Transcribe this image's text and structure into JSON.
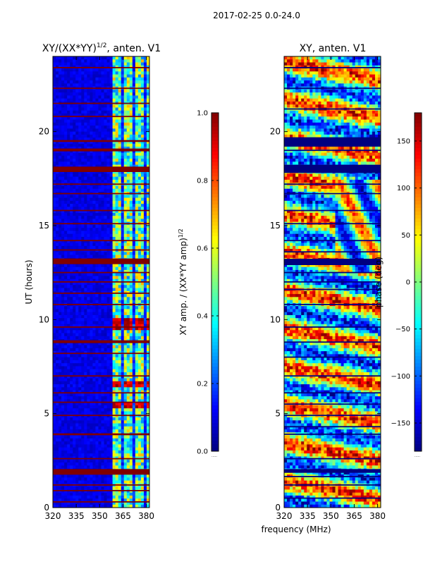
{
  "suptitle": "2017-02-25 0.0-24.0",
  "shared_xlabel": "frequency (MHz)",
  "chart_data": [
    {
      "type": "heatmap",
      "title": "XY/(XX*YY)",
      "title_sup": "1/2",
      "title_suffix": ", anten. V1",
      "xlabel": "",
      "ylabel": "UT (hours)",
      "xlim": [
        320,
        382
      ],
      "ylim": [
        0,
        24
      ],
      "xticks": [
        "320",
        "335",
        "350",
        "365",
        "380"
      ],
      "xtick_values": [
        320,
        335,
        350,
        365,
        380
      ],
      "yticks": [
        "0",
        "5",
        "10",
        "15",
        "20"
      ],
      "ytick_values": [
        0,
        5,
        10,
        15,
        20
      ],
      "colorbar": {
        "label": "XY amp. / (XX*YY amp)",
        "label_sup": "1/2",
        "ticks": [
          "0.0",
          "0.2",
          "0.4",
          "0.6",
          "0.8",
          "1.0"
        ],
        "tick_values": [
          0.0,
          0.2,
          0.4,
          0.6,
          0.8,
          1.0
        ],
        "range": [
          0.0,
          1.0
        ],
        "colormap": "jet"
      },
      "notable_features": {
        "flagged_rows_ut_hours": [
          0.3,
          0.9,
          1.2,
          1.9,
          2.6,
          3.9,
          4.9,
          5.6,
          6.1,
          7.0,
          8.2,
          8.8,
          9.6,
          10.8,
          11.4,
          12.0,
          12.5,
          13.0,
          13.2,
          13.7,
          14.2,
          15.1,
          15.8,
          16.7,
          17.2,
          17.9,
          18.1,
          19.0,
          19.5,
          20.8,
          21.5,
          22.3,
          23.4
        ],
        "thick_flagged_bands_ut_hours": [
          [
            1.75,
            2.05
          ],
          [
            3.85,
            3.95
          ],
          [
            8.75,
            8.9
          ],
          [
            12.95,
            13.25
          ],
          [
            17.85,
            18.1
          ],
          [
            18.95,
            19.1
          ],
          [
            19.45,
            19.55
          ]
        ],
        "high_coherence_freq_range_mhz": [
          359,
          381
        ],
        "high_coherence_bursts_ut_hours": [
          [
            6.4,
            6.8
          ],
          [
            9.5,
            10.0
          ],
          [
            5.2,
            5.6
          ]
        ]
      }
    },
    {
      "type": "heatmap",
      "title": "XY, anten. V1",
      "xlabel": "frequency (MHz)",
      "ylabel": "",
      "xlim": [
        320,
        382
      ],
      "ylim": [
        0,
        24
      ],
      "xticks": [
        "320",
        "335",
        "350",
        "365",
        "380"
      ],
      "xtick_values": [
        320,
        335,
        350,
        365,
        380
      ],
      "yticks": [
        "0",
        "5",
        "10",
        "15",
        "20"
      ],
      "ytick_values": [
        0,
        5,
        10,
        15,
        20
      ],
      "colorbar": {
        "label": "phase (deg)",
        "ticks": [
          "−150",
          "−100",
          "−50",
          "0",
          "50",
          "100",
          "150"
        ],
        "tick_values": [
          -150,
          -100,
          -50,
          0,
          50,
          100,
          150
        ],
        "range": [
          -180,
          180
        ],
        "colormap": "jet"
      },
      "notable_features": {
        "flagged_rows_ut_hours": [
          0.5,
          1.2,
          1.65,
          1.95,
          2.6,
          3.9,
          4.3,
          4.9,
          5.5,
          6.1,
          7.0,
          8.0,
          8.8,
          9.6,
          10.8,
          11.6,
          12.0,
          12.5,
          13.0,
          13.2,
          13.6,
          14.2,
          15.1,
          15.8,
          16.7,
          17.2,
          17.85,
          18.05,
          18.2,
          19.0,
          19.3,
          19.6,
          21.2,
          22.3,
          23.4
        ],
        "thick_flagged_bands_ut_hours": [
          [
            1.85,
            2.05
          ],
          [
            12.9,
            13.2
          ],
          [
            17.8,
            18.2
          ],
          [
            19.2,
            19.7
          ]
        ],
        "structured_phase_region_freq_mhz": [
          352,
          380
        ],
        "structured_phase_region_ut_hours": [
          12.5,
          17.5
        ]
      }
    }
  ]
}
